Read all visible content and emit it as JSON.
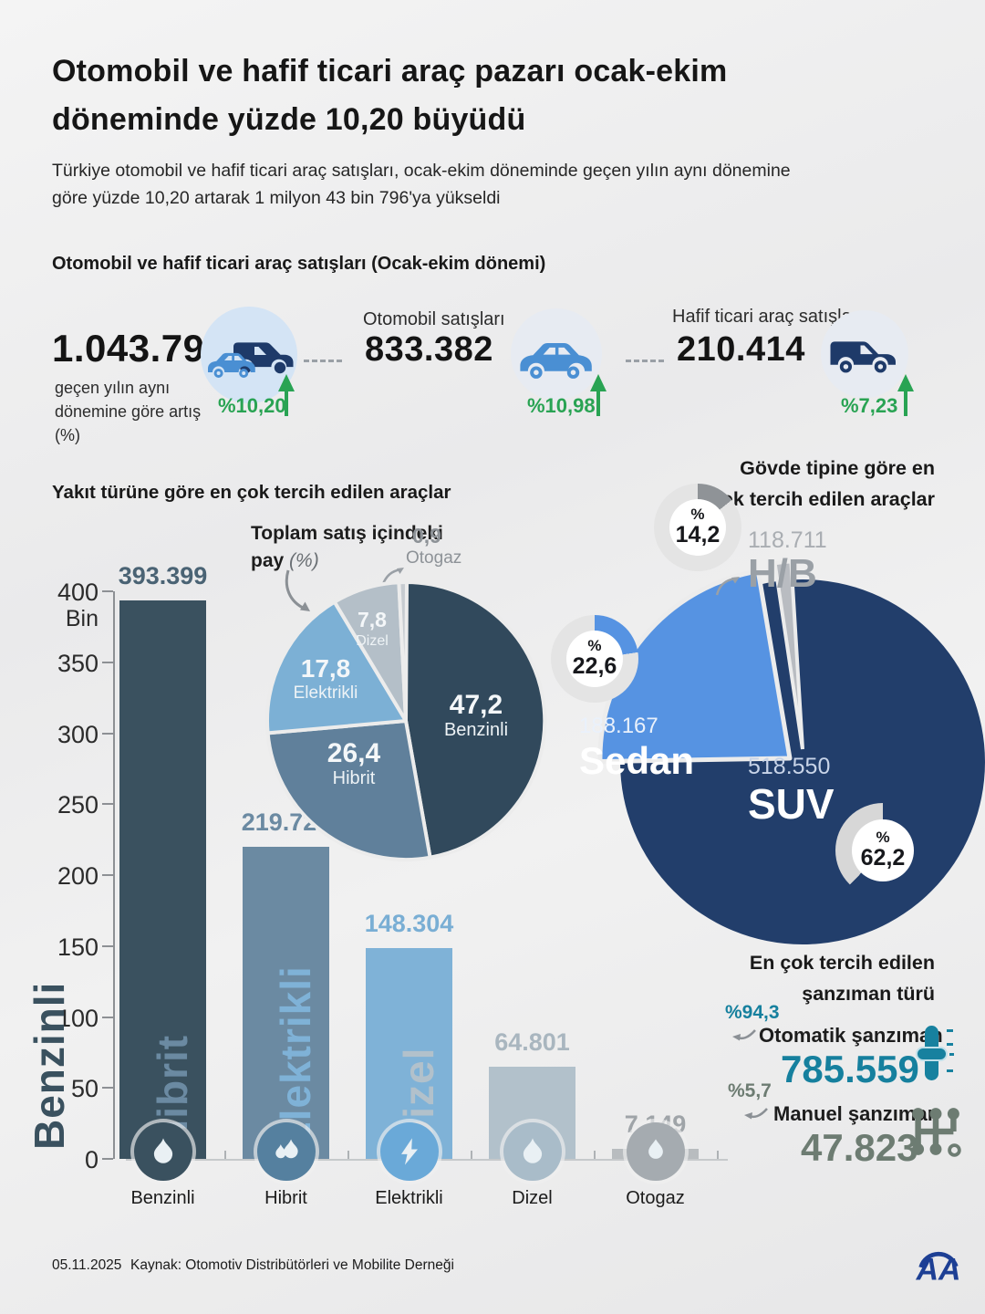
{
  "header": {
    "title": "Otomobil ve hafif ticari araç pazarı ocak-ekim döneminde yüzde 10,20 büyüdü",
    "subtitle": "Türkiye otomobil ve hafif ticari araç satışları, ocak-ekim döneminde geçen yılın aynı dönemine göre yüzde 10,20 artarak 1 milyon 43 bin 796'ya yükseldi"
  },
  "summary": {
    "heading": "Otomobil ve hafif ticari araç satışları (Ocak-ekim dönemi)",
    "total": {
      "value": "1.043.796",
      "caption": "geçen yılın aynı dönemine göre artış (%)",
      "change": "%10,20",
      "icon": "car-and-van-icon"
    },
    "cars": {
      "label": "Otomobil satışları",
      "value": "833.382",
      "change": "%10,98",
      "icon": "car-icon"
    },
    "lcv": {
      "label": "Hafif ticari araç satışları",
      "value": "210.414",
      "change": "%7,23",
      "icon": "van-icon"
    }
  },
  "misc": {
    "percent_sign": "%",
    "accent_green": "#29a353",
    "background": "#ececec"
  },
  "chart_data": [
    {
      "type": "bar",
      "title": "Yakıt türüne göre en çok tercih edilen araçlar",
      "ylabel_unit": "Bin",
      "ylim": [
        0,
        400000
      ],
      "y_ticks": [
        "400",
        "350",
        "300",
        "250",
        "200",
        "150",
        "100",
        "50",
        "0"
      ],
      "categories": [
        "Benzinli",
        "Hibrit",
        "Elektrikli",
        "Dizel",
        "Otogaz"
      ],
      "values": [
        393399,
        219729,
        148304,
        64801,
        7149
      ],
      "value_labels": [
        "393.399",
        "219.729",
        "148.304",
        "64.801",
        "7.149"
      ],
      "bar_colors": [
        "#3a515f",
        "#6b8aa2",
        "#7fb2d7",
        "#b2c1cb",
        "#b8bcbf"
      ],
      "value_label_colors": [
        "#4a6374",
        "#6b8aa2",
        "#79aed4",
        "#a9b6bf",
        "#9fa4a8"
      ],
      "icon_bg": [
        "#3a515f",
        "#55809f",
        "#6aa9d8",
        "#a9bcc9",
        "#a5abb0"
      ],
      "icons": [
        "flame-icon",
        "hybrid-flame-icon",
        "bolt-icon",
        "flame-icon",
        "drop-icon"
      ],
      "rotated_labels": [
        true,
        true,
        true,
        true,
        false
      ]
    },
    {
      "type": "pie",
      "title": "Toplam satış içindeki pay",
      "title_suffix": "(%)",
      "slices": [
        {
          "name": "Benzinli",
          "pct": 47.2,
          "label": "47,2",
          "color": "#31495c"
        },
        {
          "name": "Hibrit",
          "pct": 26.4,
          "label": "26,4",
          "color": "#60809b"
        },
        {
          "name": "Elektrikli",
          "pct": 17.8,
          "label": "17,8",
          "color": "#7cb0d5"
        },
        {
          "name": "Dizel",
          "pct": 7.8,
          "label": "7,8",
          "color": "#b4bfc8"
        },
        {
          "name": "Otogaz",
          "pct": 0.9,
          "label": "0,9",
          "color": "#c6cbd0",
          "external": true
        }
      ]
    },
    {
      "type": "pie",
      "title": "Gövde tipine göre en çok tercih edilen araçlar",
      "slices": [
        {
          "name": "SUV",
          "value_label": "518.550",
          "pct": 62.2,
          "pct_label": "62,2",
          "color": "#223e6b"
        },
        {
          "name": "Sedan",
          "value_label": "188.167",
          "pct": 22.6,
          "pct_label": "22,6",
          "color": "#5693e2"
        },
        {
          "name": "H/B",
          "value_label": "118.711",
          "pct": 14.2,
          "pct_label": "14,2",
          "color": "#b9bcc1"
        }
      ]
    }
  ],
  "transmission": {
    "heading": "En çok tercih edilen şanzıman türü",
    "items": [
      {
        "pct": "%94,3",
        "label": "Otomatik şanzıman",
        "value": "785.559",
        "color": "#16809e",
        "icon": "automatic-shifter-icon"
      },
      {
        "pct": "%5,7",
        "label": "Manuel şanzıman",
        "value": "47.823",
        "color": "#6d7c72",
        "icon": "manual-gearbox-icon"
      }
    ]
  },
  "footer": {
    "date": "05.11.2025",
    "source": "Kaynak: Otomotiv Distribütörleri ve Mobilite Derneği",
    "agency": "AA"
  }
}
